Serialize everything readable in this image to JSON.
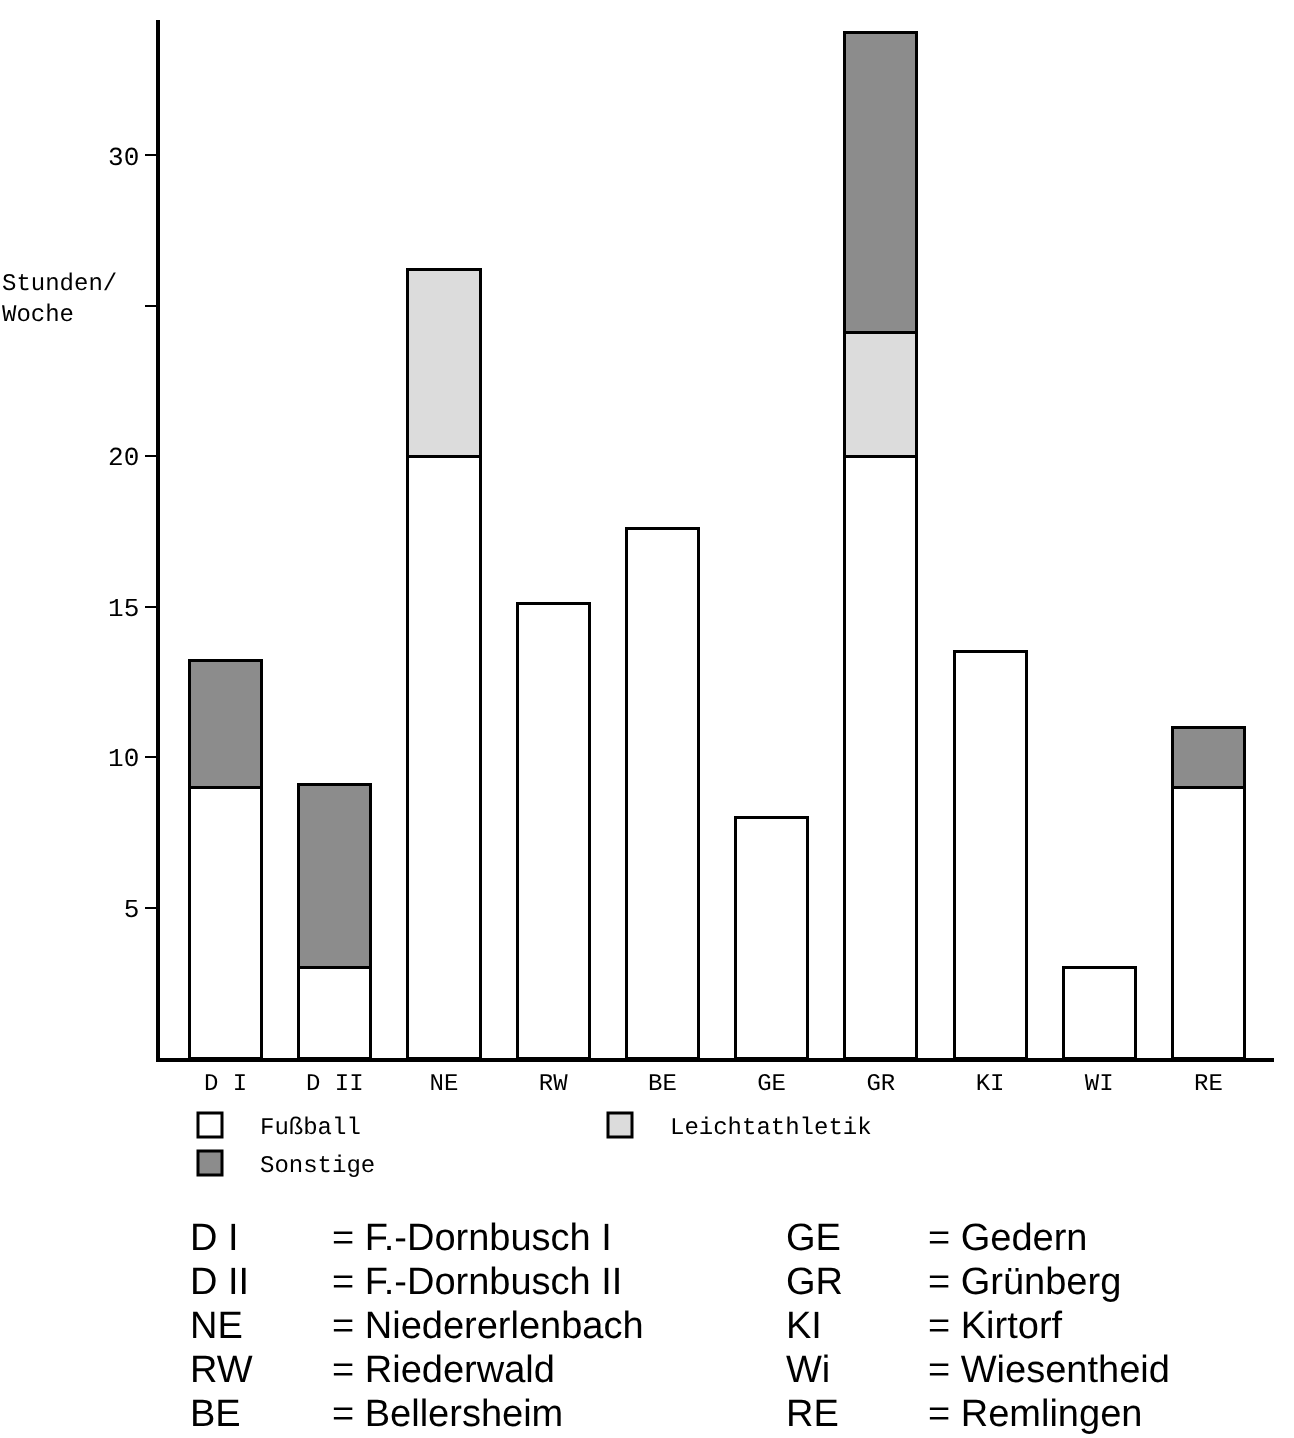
{
  "chart_data": {
    "type": "bar",
    "stacked": true,
    "ylabel": "Stunden/\nWoche",
    "categories": [
      "D I",
      "D II",
      "NE",
      "RW",
      "BE",
      "GE",
      "GR",
      "KI",
      "WI",
      "RE"
    ],
    "series": [
      {
        "name": "Fußball",
        "color": "#ffffff",
        "values": [
          9.0,
          3.0,
          20.0,
          15.1,
          17.6,
          8.0,
          20.0,
          13.5,
          3.0,
          9.0
        ]
      },
      {
        "name": "Leichtathletik",
        "color": "#dcdcdc",
        "values": [
          null,
          null,
          6.2,
          null,
          null,
          null,
          4.1,
          null,
          null,
          null
        ]
      },
      {
        "name": "Sonstige",
        "color": "#8c8c8c",
        "values": [
          4.2,
          6.1,
          null,
          null,
          null,
          null,
          10.0,
          null,
          null,
          2.0
        ]
      }
    ],
    "ylim": [
      0,
      34.5
    ],
    "yticks": [
      5,
      10,
      15,
      20,
      {
        "value": 25,
        "label": null
      },
      30
    ],
    "grid": false,
    "legend": "bottom",
    "annotations": [
      "D I = F.-Dornbusch I",
      "D II = F.-Dornbusch II",
      "NE = Niedererlenbach",
      "RW = Riederwald",
      "BE = Bellersheim",
      "GE = Gedern",
      "GR = Grünberg",
      "KI = Kirtorf",
      "Wi = Wiesentheid",
      "RE = Remlingen"
    ]
  }
}
